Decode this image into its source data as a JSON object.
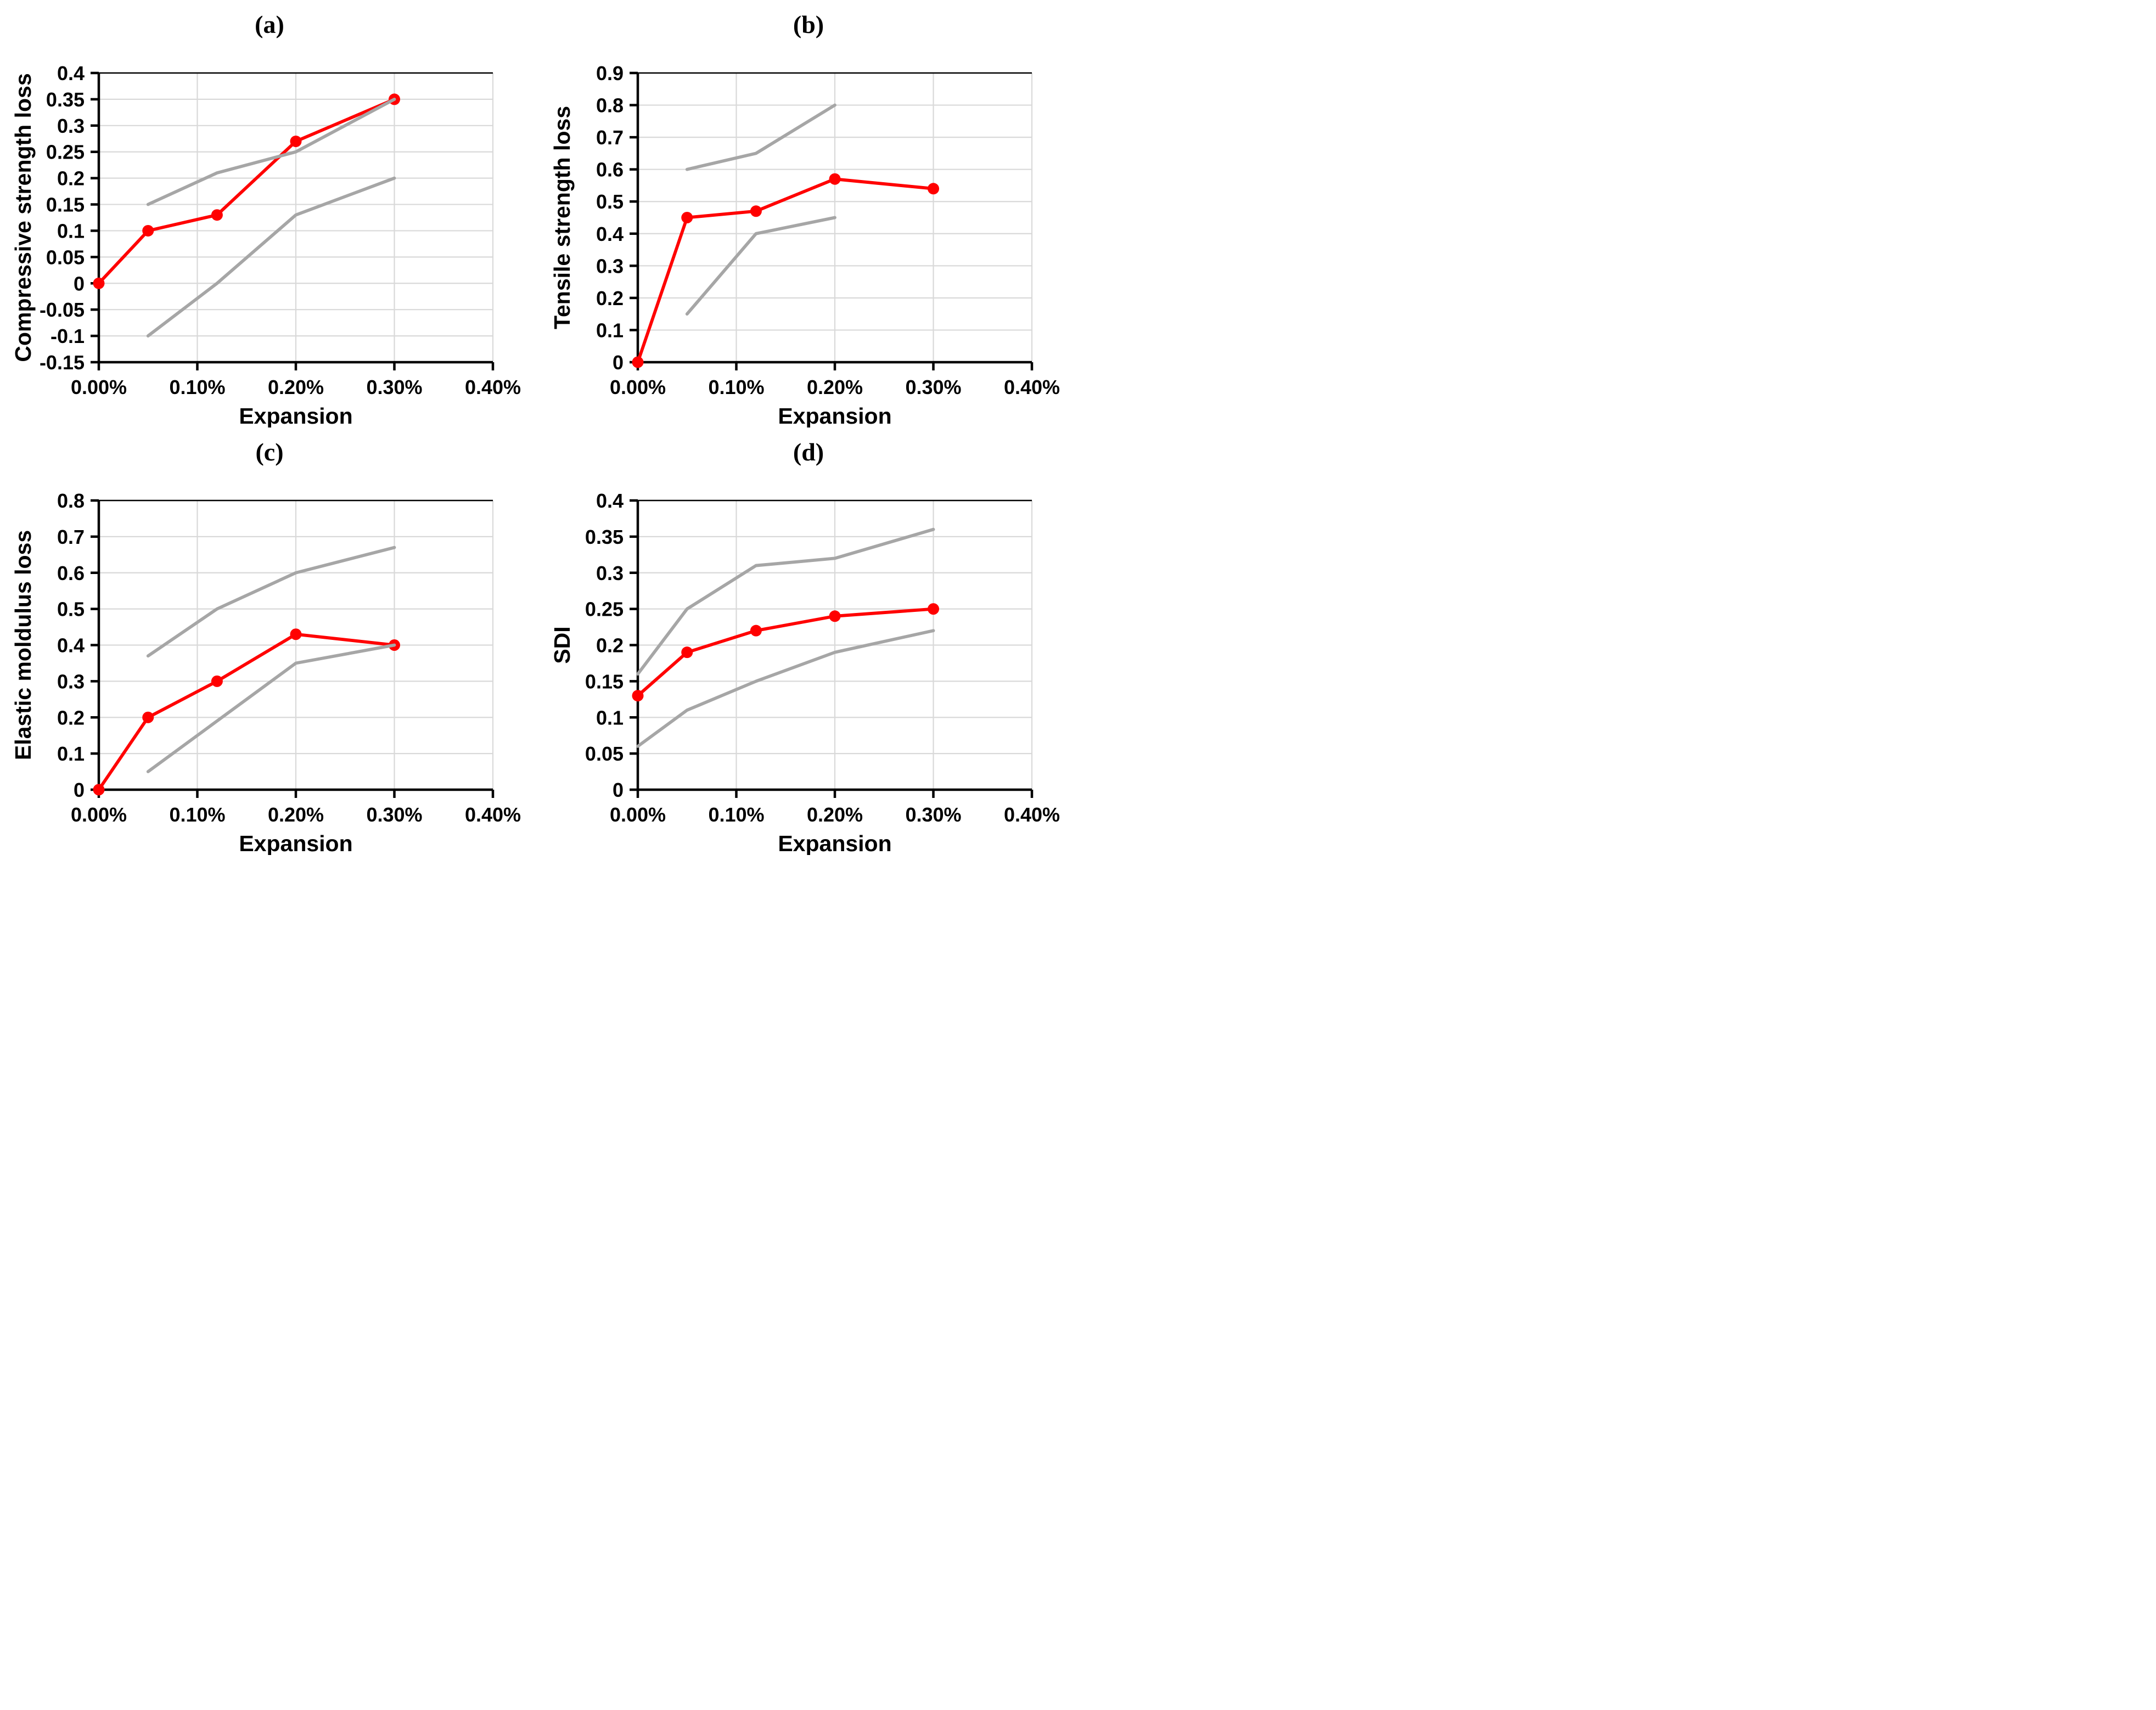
{
  "figure": {
    "layout": "2x2-panel-grid",
    "background": "#FFFFFF",
    "colors": {
      "mean_line": "#FF0000",
      "bound_line": "#A6A6A6",
      "gridline": "#D9D9D9",
      "plot_top_border": "#000000",
      "axis": "#000000",
      "text": "#000000"
    }
  },
  "chart_data": [
    {
      "id": "a",
      "title": "(a)",
      "type": "line",
      "xlabel": "Expansion",
      "ylabel": "Compressive strength loss",
      "x_unit": "percent",
      "xlim": [
        0,
        0.4
      ],
      "ylim": [
        -0.15,
        0.4
      ],
      "grid": true,
      "legend": "none",
      "xticks": [
        {
          "v": 0,
          "label": "0.00%"
        },
        {
          "v": 0.1,
          "label": "0.10%"
        },
        {
          "v": 0.2,
          "label": "0.20%"
        },
        {
          "v": 0.3,
          "label": "0.30%"
        },
        {
          "v": 0.4,
          "label": "0.40%"
        }
      ],
      "yticks": [
        {
          "v": 0.4,
          "label": "0.4"
        },
        {
          "v": 0.35,
          "label": "0.35"
        },
        {
          "v": 0.3,
          "label": "0.3"
        },
        {
          "v": 0.25,
          "label": "0.25"
        },
        {
          "v": 0.2,
          "label": "0.2"
        },
        {
          "v": 0.15,
          "label": "0.15"
        },
        {
          "v": 0.1,
          "label": "0.1"
        },
        {
          "v": 0.05,
          "label": "0.05"
        },
        {
          "v": 0,
          "label": "0"
        },
        {
          "v": -0.05,
          "label": "-0.05"
        },
        {
          "v": -0.1,
          "label": "-0.1"
        },
        {
          "v": -0.15,
          "label": "-0.15"
        }
      ],
      "series": [
        {
          "role": "mean",
          "color": "#FF0000",
          "marker": "circle",
          "points": [
            [
              0,
              0
            ],
            [
              0.05,
              0.1
            ],
            [
              0.12,
              0.13
            ],
            [
              0.2,
              0.27
            ],
            [
              0.3,
              0.35
            ]
          ]
        },
        {
          "role": "upper-bound",
          "color": "#A6A6A6",
          "marker": "none",
          "points": [
            [
              0.05,
              0.15
            ],
            [
              0.12,
              0.21
            ],
            [
              0.2,
              0.25
            ],
            [
              0.3,
              0.35
            ]
          ]
        },
        {
          "role": "lower-bound",
          "color": "#A6A6A6",
          "marker": "none",
          "points": [
            [
              0.05,
              -0.1
            ],
            [
              0.12,
              0
            ],
            [
              0.2,
              0.13
            ],
            [
              0.3,
              0.2
            ]
          ]
        }
      ]
    },
    {
      "id": "b",
      "title": "(b)",
      "type": "line",
      "xlabel": "Expansion",
      "ylabel": "Tensile strength loss",
      "x_unit": "percent",
      "xlim": [
        0,
        0.4
      ],
      "ylim": [
        0,
        0.9
      ],
      "grid": true,
      "legend": "none",
      "xticks": [
        {
          "v": 0,
          "label": "0.00%"
        },
        {
          "v": 0.1,
          "label": "0.10%"
        },
        {
          "v": 0.2,
          "label": "0.20%"
        },
        {
          "v": 0.3,
          "label": "0.30%"
        },
        {
          "v": 0.4,
          "label": "0.40%"
        }
      ],
      "yticks": [
        {
          "v": 0.9,
          "label": "0.9"
        },
        {
          "v": 0.8,
          "label": "0.8"
        },
        {
          "v": 0.7,
          "label": "0.7"
        },
        {
          "v": 0.6,
          "label": "0.6"
        },
        {
          "v": 0.5,
          "label": "0.5"
        },
        {
          "v": 0.4,
          "label": "0.4"
        },
        {
          "v": 0.3,
          "label": "0.3"
        },
        {
          "v": 0.2,
          "label": "0.2"
        },
        {
          "v": 0.1,
          "label": "0.1"
        },
        {
          "v": 0,
          "label": "0"
        }
      ],
      "series": [
        {
          "role": "mean",
          "color": "#FF0000",
          "marker": "circle",
          "points": [
            [
              0,
              0
            ],
            [
              0.05,
              0.45
            ],
            [
              0.12,
              0.47
            ],
            [
              0.2,
              0.57
            ],
            [
              0.3,
              0.54
            ]
          ]
        },
        {
          "role": "upper-bound",
          "color": "#A6A6A6",
          "marker": "none",
          "points": [
            [
              0.05,
              0.6
            ],
            [
              0.12,
              0.65
            ],
            [
              0.2,
              0.8
            ]
          ]
        },
        {
          "role": "lower-bound",
          "color": "#A6A6A6",
          "marker": "none",
          "points": [
            [
              0.05,
              0.15
            ],
            [
              0.12,
              0.4
            ],
            [
              0.2,
              0.45
            ]
          ]
        }
      ]
    },
    {
      "id": "c",
      "title": "(c)",
      "type": "line",
      "xlabel": "Expansion",
      "ylabel": "Elastic moldulus loss",
      "x_unit": "percent",
      "xlim": [
        0,
        0.4
      ],
      "ylim": [
        0,
        0.8
      ],
      "grid": true,
      "legend": "none",
      "xticks": [
        {
          "v": 0,
          "label": "0.00%"
        },
        {
          "v": 0.1,
          "label": "0.10%"
        },
        {
          "v": 0.2,
          "label": "0.20%"
        },
        {
          "v": 0.3,
          "label": "0.30%"
        },
        {
          "v": 0.4,
          "label": "0.40%"
        }
      ],
      "yticks": [
        {
          "v": 0.8,
          "label": "0.8"
        },
        {
          "v": 0.7,
          "label": "0.7"
        },
        {
          "v": 0.6,
          "label": "0.6"
        },
        {
          "v": 0.5,
          "label": "0.5"
        },
        {
          "v": 0.4,
          "label": "0.4"
        },
        {
          "v": 0.3,
          "label": "0.3"
        },
        {
          "v": 0.2,
          "label": "0.2"
        },
        {
          "v": 0.1,
          "label": "0.1"
        },
        {
          "v": 0,
          "label": "0"
        }
      ],
      "series": [
        {
          "role": "mean",
          "color": "#FF0000",
          "marker": "circle",
          "points": [
            [
              0,
              0
            ],
            [
              0.05,
              0.2
            ],
            [
              0.12,
              0.3
            ],
            [
              0.2,
              0.43
            ],
            [
              0.3,
              0.4
            ]
          ]
        },
        {
          "role": "upper-bound",
          "color": "#A6A6A6",
          "marker": "none",
          "points": [
            [
              0.05,
              0.37
            ],
            [
              0.12,
              0.5
            ],
            [
              0.2,
              0.6
            ],
            [
              0.3,
              0.67
            ]
          ]
        },
        {
          "role": "lower-bound",
          "color": "#A6A6A6",
          "marker": "none",
          "points": [
            [
              0.05,
              0.05
            ],
            [
              0.12,
              0.19
            ],
            [
              0.2,
              0.35
            ],
            [
              0.3,
              0.4
            ]
          ]
        }
      ]
    },
    {
      "id": "d",
      "title": "(d)",
      "type": "line",
      "xlabel": "Expansion",
      "ylabel": "SDI",
      "x_unit": "percent",
      "xlim": [
        0,
        0.4
      ],
      "ylim": [
        0,
        0.4
      ],
      "grid": true,
      "legend": "none",
      "xticks": [
        {
          "v": 0,
          "label": "0.00%"
        },
        {
          "v": 0.1,
          "label": "0.10%"
        },
        {
          "v": 0.2,
          "label": "0.20%"
        },
        {
          "v": 0.3,
          "label": "0.30%"
        },
        {
          "v": 0.4,
          "label": "0.40%"
        }
      ],
      "yticks": [
        {
          "v": 0.4,
          "label": "0.4"
        },
        {
          "v": 0.35,
          "label": "0.35"
        },
        {
          "v": 0.3,
          "label": "0.3"
        },
        {
          "v": 0.25,
          "label": "0.25"
        },
        {
          "v": 0.2,
          "label": "0.2"
        },
        {
          "v": 0.15,
          "label": "0.15"
        },
        {
          "v": 0.1,
          "label": "0.1"
        },
        {
          "v": 0.05,
          "label": "0.05"
        },
        {
          "v": 0,
          "label": "0"
        }
      ],
      "series": [
        {
          "role": "mean",
          "color": "#FF0000",
          "marker": "circle",
          "points": [
            [
              0,
              0.13
            ],
            [
              0.05,
              0.19
            ],
            [
              0.12,
              0.22
            ],
            [
              0.2,
              0.24
            ],
            [
              0.3,
              0.25
            ]
          ]
        },
        {
          "role": "upper-bound",
          "color": "#A6A6A6",
          "marker": "none",
          "points": [
            [
              0,
              0.16
            ],
            [
              0.05,
              0.25
            ],
            [
              0.12,
              0.31
            ],
            [
              0.2,
              0.32
            ],
            [
              0.3,
              0.36
            ]
          ]
        },
        {
          "role": "lower-bound",
          "color": "#A6A6A6",
          "marker": "none",
          "points": [
            [
              0,
              0.06
            ],
            [
              0.05,
              0.11
            ],
            [
              0.12,
              0.15
            ],
            [
              0.2,
              0.19
            ],
            [
              0.3,
              0.22
            ]
          ]
        }
      ]
    }
  ]
}
